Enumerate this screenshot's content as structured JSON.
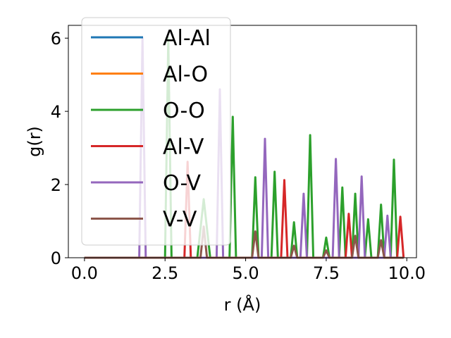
{
  "chart_data": {
    "type": "line",
    "xlabel": "r (Å)",
    "ylabel": "g(r)",
    "xlim": [
      -0.5,
      10.3
    ],
    "ylim": [
      0,
      6.35
    ],
    "xticks": [
      0.0,
      2.5,
      5.0,
      7.5,
      10.0
    ],
    "xtick_labels": [
      "0.0",
      "2.5",
      "5.0",
      "7.5",
      "10.0"
    ],
    "yticks": [
      0,
      2,
      4,
      6
    ],
    "ytick_labels": [
      "0",
      "2",
      "4",
      "6"
    ],
    "grid": false,
    "legend_position": "upper-left",
    "series": [
      {
        "name": "Al-Al",
        "color": "#1f77b4",
        "x": [
          0,
          9.9
        ],
        "y": [
          0,
          0
        ]
      },
      {
        "name": "Al-O",
        "color": "#ff7f0e",
        "x": [
          0,
          9.9
        ],
        "y": [
          0,
          0
        ]
      },
      {
        "name": "O-O",
        "color": "#2ca02c",
        "x": [
          0,
          2.5,
          2.6,
          2.7,
          3.5,
          3.7,
          3.9,
          4.5,
          4.6,
          4.7,
          5.2,
          5.3,
          5.4,
          5.8,
          5.9,
          6.0,
          6.4,
          6.5,
          6.6,
          6.9,
          7.0,
          7.1,
          7.4,
          7.5,
          7.6,
          7.9,
          8.0,
          8.1,
          8.3,
          8.4,
          8.5,
          8.7,
          8.8,
          8.9,
          9.1,
          9.2,
          9.3,
          9.5,
          9.6,
          9.7,
          9.9
        ],
        "y": [
          0,
          0,
          6.0,
          0,
          0,
          1.6,
          0,
          0,
          3.85,
          0,
          0,
          2.2,
          0,
          0,
          2.35,
          0,
          0,
          0.97,
          0,
          0,
          3.35,
          0,
          0,
          0.55,
          0,
          0,
          1.92,
          0,
          0,
          1.75,
          0,
          0,
          1.05,
          0,
          0,
          1.45,
          0,
          0,
          2.68,
          0,
          0
        ]
      },
      {
        "name": "Al-V",
        "color": "#d62728",
        "x": [
          0,
          3.1,
          3.2,
          3.3,
          6.1,
          6.2,
          6.3,
          8.1,
          8.2,
          8.3,
          9.7,
          9.8,
          9.9
        ],
        "y": [
          0,
          0,
          2.62,
          0,
          0,
          2.12,
          0,
          0,
          1.2,
          0,
          0,
          1.12,
          0
        ]
      },
      {
        "name": "O-V",
        "color": "#9467bd",
        "x": [
          0,
          1.7,
          1.8,
          1.9,
          4.1,
          4.2,
          4.3,
          5.5,
          5.6,
          5.7,
          6.7,
          6.8,
          6.9,
          7.7,
          7.8,
          7.9,
          8.5,
          8.6,
          8.7,
          9.3,
          9.4,
          9.5,
          9.9
        ],
        "y": [
          0,
          0,
          6.0,
          0,
          0,
          4.6,
          0,
          0,
          3.25,
          0,
          0,
          1.75,
          0,
          0,
          2.7,
          0,
          0,
          2.22,
          0,
          0,
          1.15,
          0,
          0
        ]
      },
      {
        "name": "V-V",
        "color": "#8c564b",
        "x": [
          0,
          3.6,
          3.7,
          3.8,
          5.2,
          5.3,
          5.4,
          6.4,
          6.5,
          6.6,
          7.4,
          7.5,
          7.6,
          8.3,
          8.4,
          8.5,
          9.1,
          9.2,
          9.3,
          9.9
        ],
        "y": [
          0,
          0,
          0.85,
          0,
          0,
          0.72,
          0,
          0,
          0.33,
          0,
          0,
          0.2,
          0,
          0,
          0.6,
          0,
          0,
          0.48,
          0,
          0
        ]
      }
    ]
  }
}
